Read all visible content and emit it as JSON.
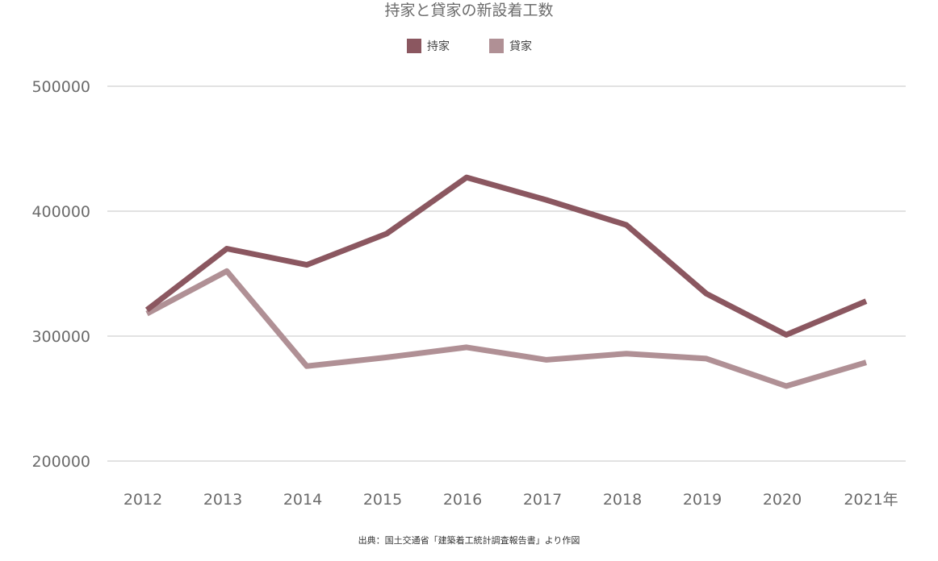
{
  "chart_data": {
    "type": "line",
    "title": "持家と貸家の新設着工数",
    "categories": [
      "2012",
      "2013",
      "2014",
      "2015",
      "2016",
      "2017",
      "2018",
      "2019",
      "2020",
      "2021年"
    ],
    "series": [
      {
        "name": "持家",
        "color": "#8b5760",
        "values": [
          321000,
          370000,
          357000,
          382000,
          427000,
          409000,
          389000,
          334000,
          301000,
          328000
        ]
      },
      {
        "name": "貸家",
        "color": "#b09095",
        "values": [
          318000,
          352000,
          276000,
          283000,
          291000,
          281000,
          286000,
          282000,
          260000,
          279000
        ]
      }
    ],
    "xlabel": "",
    "ylabel": "",
    "ylim": [
      200000,
      500000
    ],
    "yticks": [
      "200000",
      "300000",
      "400000",
      "500000"
    ],
    "grid": true,
    "legend_position": "top-center",
    "source": "出典：国土交通省「建築着工統計調査報告書」より作図"
  }
}
